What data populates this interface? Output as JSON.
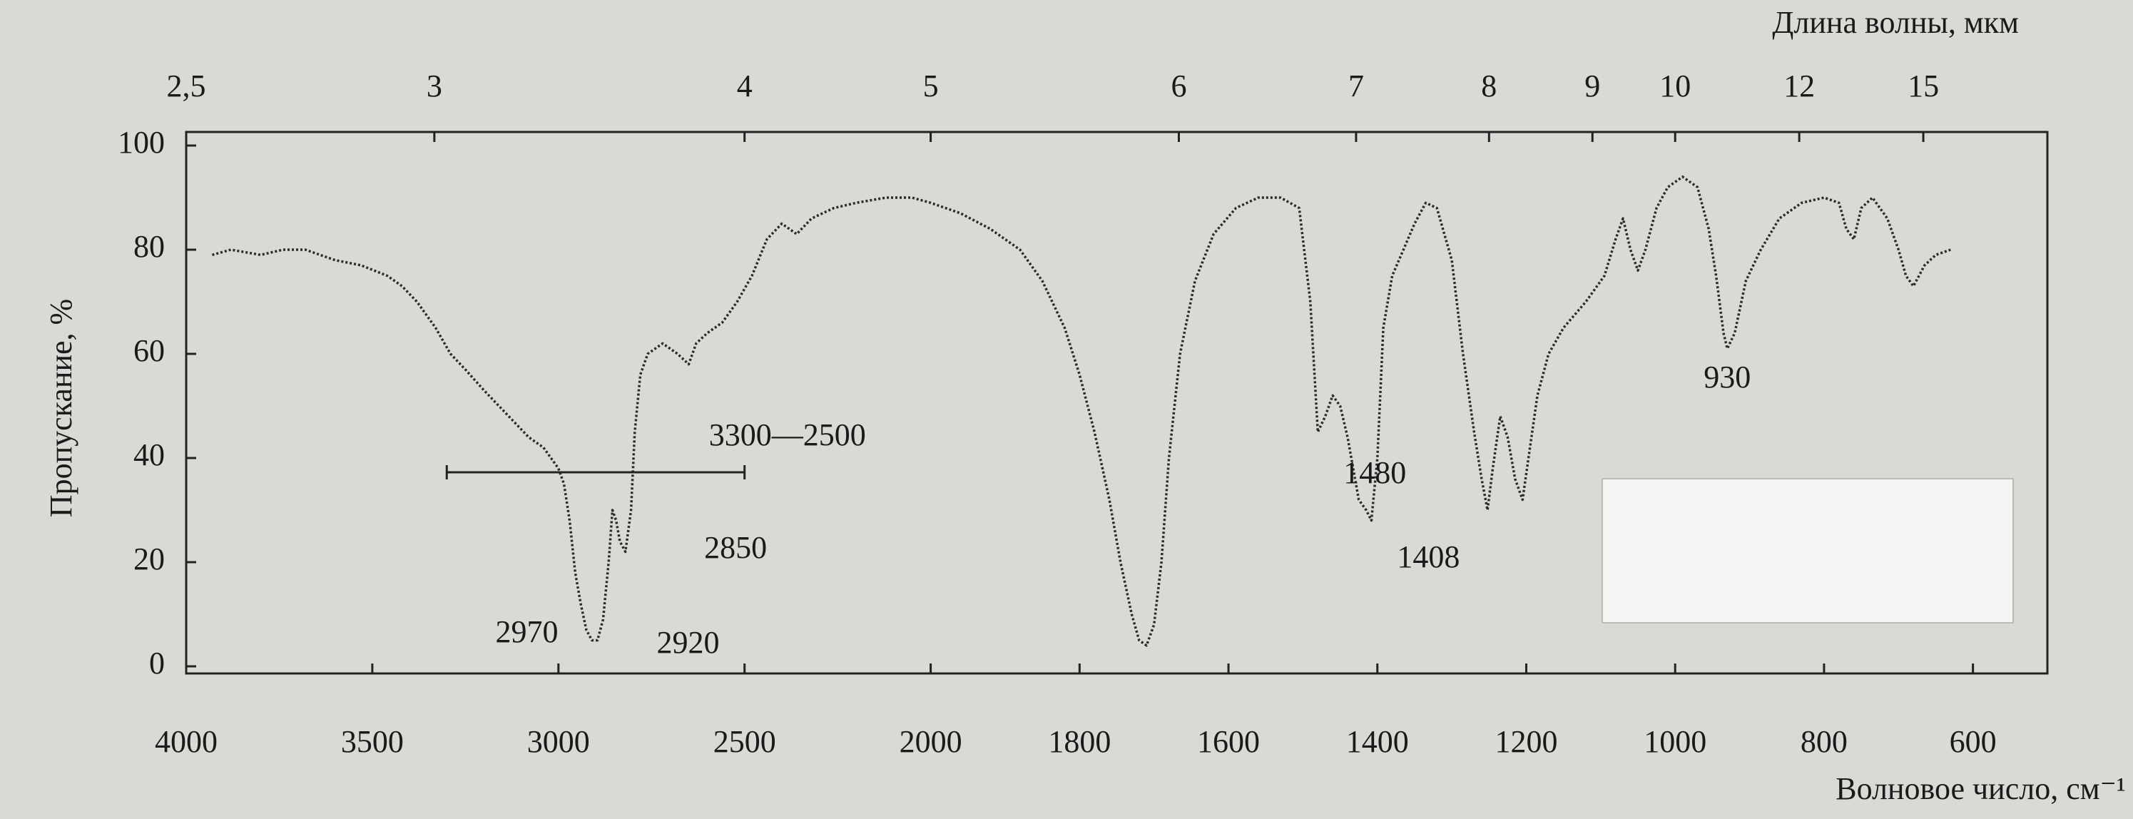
{
  "chart_data": {
    "type": "line",
    "x_axis_label": "Волновое число, см⁻¹",
    "x2_axis_label": "Длина волны, мкм",
    "y_axis_label": "Пропускание, %",
    "xlim": [
      4000,
      500
    ],
    "x_scale_break": 2000,
    "xticks": [
      4000,
      3500,
      3000,
      2500,
      2000,
      1800,
      1600,
      1400,
      1200,
      1000,
      800,
      600
    ],
    "x2ticks": [
      {
        "value": 2.5,
        "label": "2,5"
      },
      3,
      4,
      5,
      6,
      7,
      8,
      9,
      10,
      12,
      15
    ],
    "ylim": [
      0,
      100
    ],
    "yticks": [
      0,
      20,
      40,
      60,
      80,
      100
    ],
    "color": "#2b2b2b",
    "x": [
      3930,
      3880,
      3800,
      3740,
      3680,
      3600,
      3530,
      3460,
      3420,
      3380,
      3330,
      3290,
      3250,
      3200,
      3160,
      3120,
      3080,
      3040,
      3000,
      2985,
      2970,
      2955,
      2940,
      2925,
      2910,
      2895,
      2880,
      2865,
      2855,
      2845,
      2835,
      2820,
      2805,
      2795,
      2780,
      2760,
      2720,
      2680,
      2650,
      2630,
      2600,
      2560,
      2520,
      2480,
      2440,
      2400,
      2360,
      2320,
      2260,
      2200,
      2120,
      2050,
      2000,
      1960,
      1920,
      1880,
      1850,
      1820,
      1800,
      1780,
      1760,
      1745,
      1730,
      1720,
      1710,
      1700,
      1690,
      1680,
      1665,
      1645,
      1620,
      1590,
      1560,
      1530,
      1505,
      1490,
      1480,
      1470,
      1460,
      1450,
      1440,
      1425,
      1415,
      1408,
      1400,
      1392,
      1380,
      1365,
      1350,
      1335,
      1320,
      1300,
      1285,
      1270,
      1260,
      1252,
      1245,
      1235,
      1225,
      1215,
      1205,
      1195,
      1185,
      1170,
      1150,
      1120,
      1095,
      1080,
      1070,
      1060,
      1050,
      1040,
      1025,
      1010,
      990,
      970,
      955,
      945,
      935,
      930,
      920,
      905,
      885,
      860,
      830,
      800,
      780,
      770,
      760,
      750,
      735,
      715,
      700,
      690,
      680,
      665,
      650,
      630
    ],
    "values": [
      79,
      80,
      79,
      80,
      80,
      78,
      77,
      75,
      73,
      70,
      65,
      60,
      57,
      53,
      50,
      47,
      44,
      42,
      38,
      35,
      28,
      18,
      12,
      7,
      5,
      5,
      9,
      20,
      30,
      28,
      24,
      22,
      30,
      45,
      56,
      60,
      62,
      60,
      58,
      62,
      64,
      66,
      70,
      75,
      82,
      85,
      83,
      86,
      88,
      89,
      90,
      90,
      89,
      87,
      84,
      80,
      74,
      65,
      56,
      45,
      32,
      20,
      10,
      5,
      4,
      8,
      20,
      40,
      60,
      74,
      83,
      88,
      90,
      90,
      88,
      70,
      45,
      48,
      52,
      50,
      44,
      32,
      30,
      28,
      40,
      65,
      75,
      80,
      85,
      89,
      88,
      78,
      60,
      45,
      36,
      30,
      38,
      48,
      44,
      36,
      32,
      42,
      52,
      60,
      65,
      70,
      75,
      82,
      86,
      80,
      76,
      80,
      88,
      92,
      94,
      92,
      84,
      75,
      64,
      61,
      64,
      74,
      80,
      86,
      89,
      90,
      89,
      84,
      82,
      88,
      90,
      86,
      80,
      75,
      73,
      77,
      79,
      80
    ],
    "peak_labels": [
      2970,
      2920,
      2850,
      1480,
      1408,
      930
    ],
    "range_annotation": {
      "range": [
        3300,
        2500
      ],
      "label": "3300—2500"
    }
  }
}
